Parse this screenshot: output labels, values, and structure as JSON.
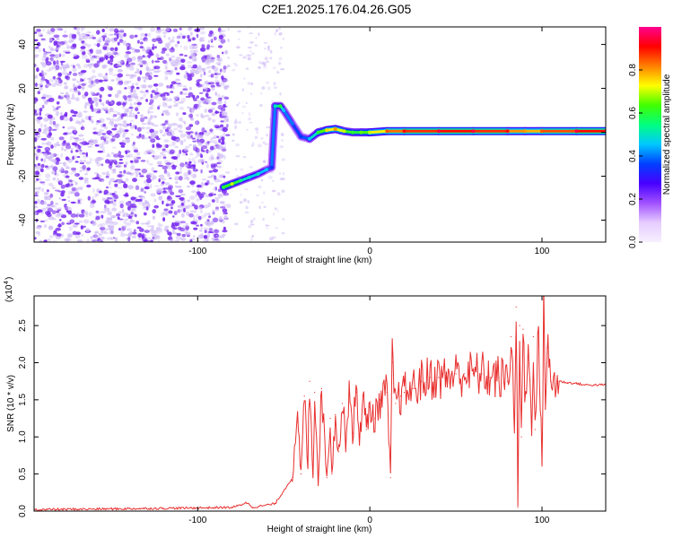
{
  "title": "C2E1.2025.176.04.26.G05",
  "colors": {
    "snr_line": "#e8302f",
    "scatter_purple": "#7a2cf0",
    "scatter_light": "#cdb8f5",
    "colormap": [
      "#f7f0ff",
      "#e6ccff",
      "#a050ff",
      "#4800ff",
      "#0040ff",
      "#00c8ff",
      "#00ff80",
      "#40ff00",
      "#ffff00",
      "#ff8000",
      "#ff0000",
      "#ff0090"
    ]
  },
  "chart_data": [
    {
      "type": "heatmap",
      "xlabel": "Height of straight line (km)",
      "ylabel": "Frequency (Hz)",
      "xlim": [
        -195,
        137
      ],
      "ylim": [
        -50,
        48
      ],
      "xticks": [
        -100,
        0,
        100
      ],
      "yticks": [
        -40,
        -20,
        0,
        20,
        40
      ],
      "grid": false,
      "colorbar": {
        "label": "Normalized spectral amplitude",
        "range": [
          0,
          1
        ],
        "ticks": [
          "0.0",
          "0.2",
          "0.4",
          "0.6",
          "0.8"
        ]
      },
      "feature_track": {
        "x": [
          -85,
          -80,
          -75,
          -70,
          -65,
          -60,
          -57,
          -55,
          -52,
          -50,
          -45,
          -40,
          -35,
          -30,
          -25,
          -20,
          -15,
          -10,
          -5,
          0,
          10,
          20,
          40,
          60,
          80,
          90,
          100,
          120,
          137
        ],
        "y": [
          -25,
          -23.5,
          -22,
          -20.5,
          -19,
          -17,
          -16,
          12,
          12,
          10,
          4,
          -2,
          -3,
          0,
          1,
          1.5,
          0.5,
          0,
          0,
          0,
          0.5,
          0.5,
          0.5,
          0.5,
          0.5,
          0.5,
          0.5,
          0.5,
          0.5
        ],
        "amplitude": [
          0.6,
          0.7,
          0.55,
          0.5,
          0.5,
          0.45,
          0.35,
          0.5,
          0.6,
          0.45,
          0.4,
          0.35,
          0.45,
          0.6,
          0.75,
          0.8,
          0.7,
          0.6,
          0.65,
          0.7,
          0.85,
          0.9,
          0.95,
          0.95,
          0.9,
          0.8,
          0.85,
          0.95,
          0.95
        ]
      },
      "noise_region_x": [
        -195,
        -82
      ]
    },
    {
      "type": "line",
      "xlabel": "Height of straight line (km)",
      "ylabel": "SNR (10 * v/v)",
      "y_multiplier": "(x10^4)",
      "xlim": [
        -195,
        137
      ],
      "ylim": [
        0,
        2.9
      ],
      "xticks": [
        -100,
        0,
        100
      ],
      "yticks": [
        "0.0",
        "0.5",
        "1.0",
        "1.5",
        "2.0",
        "2.5"
      ],
      "grid": false,
      "series": [
        {
          "x": [
            -195,
            -150,
            -110,
            -80,
            -75,
            -72,
            -68,
            -55,
            -45,
            -42,
            -40,
            -38,
            -36,
            -35,
            -33,
            -32,
            -30,
            -28,
            -25,
            -23,
            -22,
            -20,
            -18,
            -16,
            -14,
            -12,
            -10,
            -8,
            -6,
            -4,
            -2,
            0,
            3,
            6,
            10,
            12,
            13,
            15,
            18,
            20,
            25,
            30,
            35,
            40,
            45,
            50,
            55,
            60,
            65,
            70,
            75,
            80,
            82,
            84,
            85,
            86,
            87,
            88,
            89,
            90,
            92,
            94,
            95,
            96,
            98,
            100,
            101,
            102,
            103,
            105,
            110,
            115,
            120,
            125,
            130,
            137
          ],
          "values": [
            0.02,
            0.03,
            0.04,
            0.05,
            0.08,
            0.12,
            0.05,
            0.1,
            0.45,
            1.2,
            0.5,
            1.55,
            0.6,
            1.75,
            0.5,
            1.6,
            0.4,
            1.65,
            0.45,
            1.25,
            0.5,
            1.3,
            0.8,
            1.45,
            0.95,
            1.7,
            1.05,
            1.6,
            1.0,
            1.55,
            1.1,
            1.4,
            1.25,
            1.5,
            1.6,
            0.45,
            2.0,
            1.45,
            1.55,
            1.6,
            1.65,
            1.75,
            1.8,
            1.8,
            1.8,
            1.85,
            1.85,
            1.85,
            1.85,
            1.8,
            1.8,
            1.75,
            2.35,
            1.2,
            2.75,
            0.05,
            2.5,
            1.0,
            2.45,
            1.5,
            2.1,
            1.2,
            2.35,
            1.1,
            2.4,
            0.65,
            2.85,
            1.5,
            2.2,
            1.75,
            1.75,
            1.73,
            1.72,
            1.7,
            1.7,
            1.7
          ]
        }
      ]
    }
  ]
}
